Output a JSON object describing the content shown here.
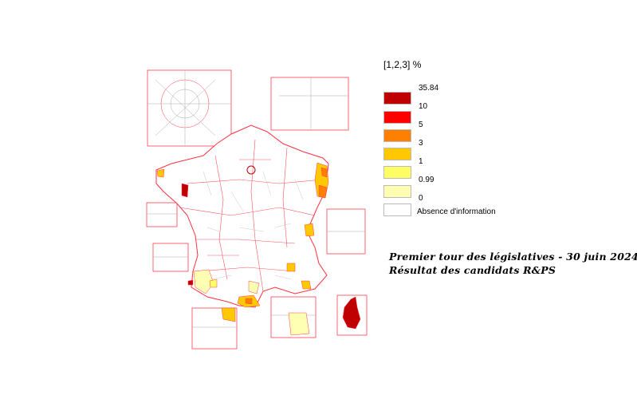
{
  "legend": {
    "title": "[1,2,3] %",
    "classes": [
      {
        "color": "#c00000",
        "upper": "35.84"
      },
      {
        "color": "#ff0000",
        "upper": "10"
      },
      {
        "color": "#ff8000",
        "upper": "5"
      },
      {
        "color": "#ffc800",
        "upper": "3"
      },
      {
        "color": "#ffff66",
        "upper": "1"
      },
      {
        "color": "#ffffb4",
        "upper": "0.99"
      }
    ],
    "lower_bound": "0",
    "no_data": {
      "color": "#ffffff",
      "label": "Absence d'information"
    }
  },
  "title": {
    "line1": "Premier tour des législatives - 30 juin 2024",
    "line2": "Résultat des candidats R&PS"
  },
  "colors": {
    "boundary": "#ff3040",
    "inner": "#999999"
  }
}
